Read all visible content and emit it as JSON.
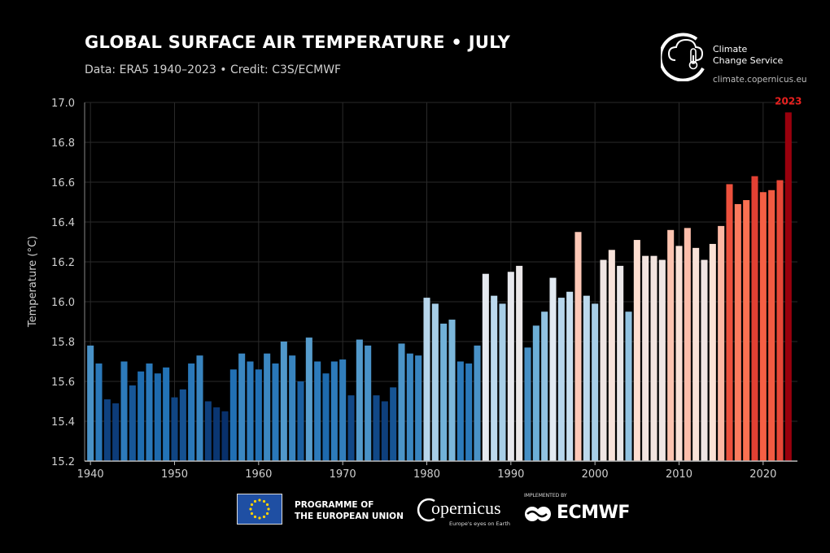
{
  "header": {
    "title": "GLOBAL SURFACE AIR TEMPERATURE • JULY",
    "subtitle": "Data: ERA5 1940–2023 • Credit: C3S/ECMWF"
  },
  "brand": {
    "name": "Climate\nChange Service",
    "url": "climate.copernicus.eu",
    "icon": "thermometer-cloud-icon"
  },
  "footer": {
    "eu_label": "PROGRAMME OF\nTHE EUROPEAN UNION",
    "copernicus_label": "opernicus",
    "copernicus_tagline": "Europe's eyes on Earth",
    "ecmwf_prefix": "IMPLEMENTED BY",
    "ecmwf_label": "ECMWF"
  },
  "chart_data": {
    "type": "bar",
    "ylabel": "Temperature (°C)",
    "ylim": [
      15.2,
      17.0
    ],
    "yticks": [
      "15.2",
      "15.4",
      "15.6",
      "15.8",
      "16.0",
      "16.2",
      "16.4",
      "16.6",
      "16.8",
      "17.0"
    ],
    "xticks": [
      "1940",
      "1950",
      "1960",
      "1970",
      "1980",
      "1990",
      "2000",
      "2010",
      "2020"
    ],
    "grid": true,
    "highlight_label": "2023",
    "highlight_color": "#e8201e",
    "colormap": [
      "#08306b",
      "#2171b5",
      "#6baed6",
      "#deebf7",
      "#fee0d2",
      "#fb6a4a",
      "#cb181d",
      "#99000d"
    ],
    "categories": [
      1940,
      1941,
      1942,
      1943,
      1944,
      1945,
      1946,
      1947,
      1948,
      1949,
      1950,
      1951,
      1952,
      1953,
      1954,
      1955,
      1956,
      1957,
      1958,
      1959,
      1960,
      1961,
      1962,
      1963,
      1964,
      1965,
      1966,
      1967,
      1968,
      1969,
      1970,
      1971,
      1972,
      1973,
      1974,
      1975,
      1976,
      1977,
      1978,
      1979,
      1980,
      1981,
      1982,
      1983,
      1984,
      1985,
      1986,
      1987,
      1988,
      1989,
      1990,
      1991,
      1992,
      1993,
      1994,
      1995,
      1996,
      1997,
      1998,
      1999,
      2000,
      2001,
      2002,
      2003,
      2004,
      2005,
      2006,
      2007,
      2008,
      2009,
      2010,
      2011,
      2012,
      2013,
      2014,
      2015,
      2016,
      2017,
      2018,
      2019,
      2020,
      2021,
      2022,
      2023
    ],
    "values": [
      15.78,
      15.69,
      15.51,
      15.49,
      15.7,
      15.58,
      15.65,
      15.69,
      15.64,
      15.67,
      15.52,
      15.56,
      15.69,
      15.73,
      15.5,
      15.47,
      15.45,
      15.66,
      15.74,
      15.7,
      15.66,
      15.74,
      15.69,
      15.8,
      15.73,
      15.6,
      15.82,
      15.7,
      15.64,
      15.7,
      15.71,
      15.53,
      15.81,
      15.78,
      15.53,
      15.5,
      15.57,
      15.79,
      15.74,
      15.73,
      16.02,
      15.99,
      15.89,
      15.91,
      15.7,
      15.69,
      15.78,
      16.14,
      16.03,
      15.99,
      16.15,
      16.18,
      15.77,
      15.88,
      15.95,
      16.12,
      16.02,
      16.05,
      16.35,
      16.03,
      15.99,
      16.21,
      16.26,
      16.18,
      15.95,
      16.31,
      16.23,
      16.23,
      16.21,
      16.36,
      16.28,
      16.37,
      16.27,
      16.21,
      16.29,
      16.38,
      16.59,
      16.49,
      16.51,
      16.63,
      16.55,
      16.56,
      16.61,
      16.95
    ]
  }
}
